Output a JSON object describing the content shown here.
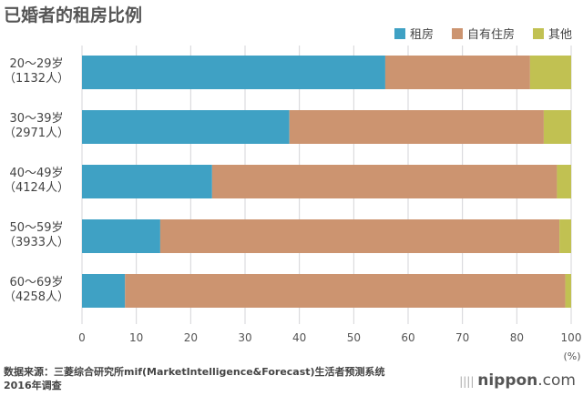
{
  "chart_data": {
    "type": "bar",
    "orientation": "horizontal",
    "stacked": true,
    "title": "已婚者的租房比例",
    "categories": [
      {
        "age": "20～29岁",
        "n": "（1132人）"
      },
      {
        "age": "30～39岁",
        "n": "（2971人）"
      },
      {
        "age": "40～49岁",
        "n": "（4124人）"
      },
      {
        "age": "50～59岁",
        "n": "（3933人）"
      },
      {
        "age": "60～69岁",
        "n": "（4258人）"
      }
    ],
    "series": [
      {
        "name": "租房",
        "color": "#3fa1c4",
        "values": [
          62.0,
          42.4,
          26.6,
          16.0,
          8.8
        ]
      },
      {
        "name": "自有住房",
        "color": "#cc9470",
        "values": [
          29.6,
          52.0,
          70.5,
          81.6,
          90.0
        ]
      },
      {
        "name": "其他",
        "color": "#c1c152",
        "values": [
          8.4,
          5.6,
          2.9,
          2.4,
          1.2
        ]
      }
    ],
    "xlim": [
      0,
      100
    ],
    "x_tick_labels": [
      "0",
      "10",
      "20",
      "30",
      "40",
      "50",
      "60",
      "70",
      "80",
      "100"
    ],
    "x_unit": "(%)",
    "grid": true,
    "legend_position": "top-right"
  },
  "source_line1": "数据来源：三菱综合研究所mif(MarketIntelligence&Forecast)生活者预测系统",
  "source_line2": "2016年调查",
  "logo": {
    "main": "nippon",
    "suffix": ".com"
  }
}
